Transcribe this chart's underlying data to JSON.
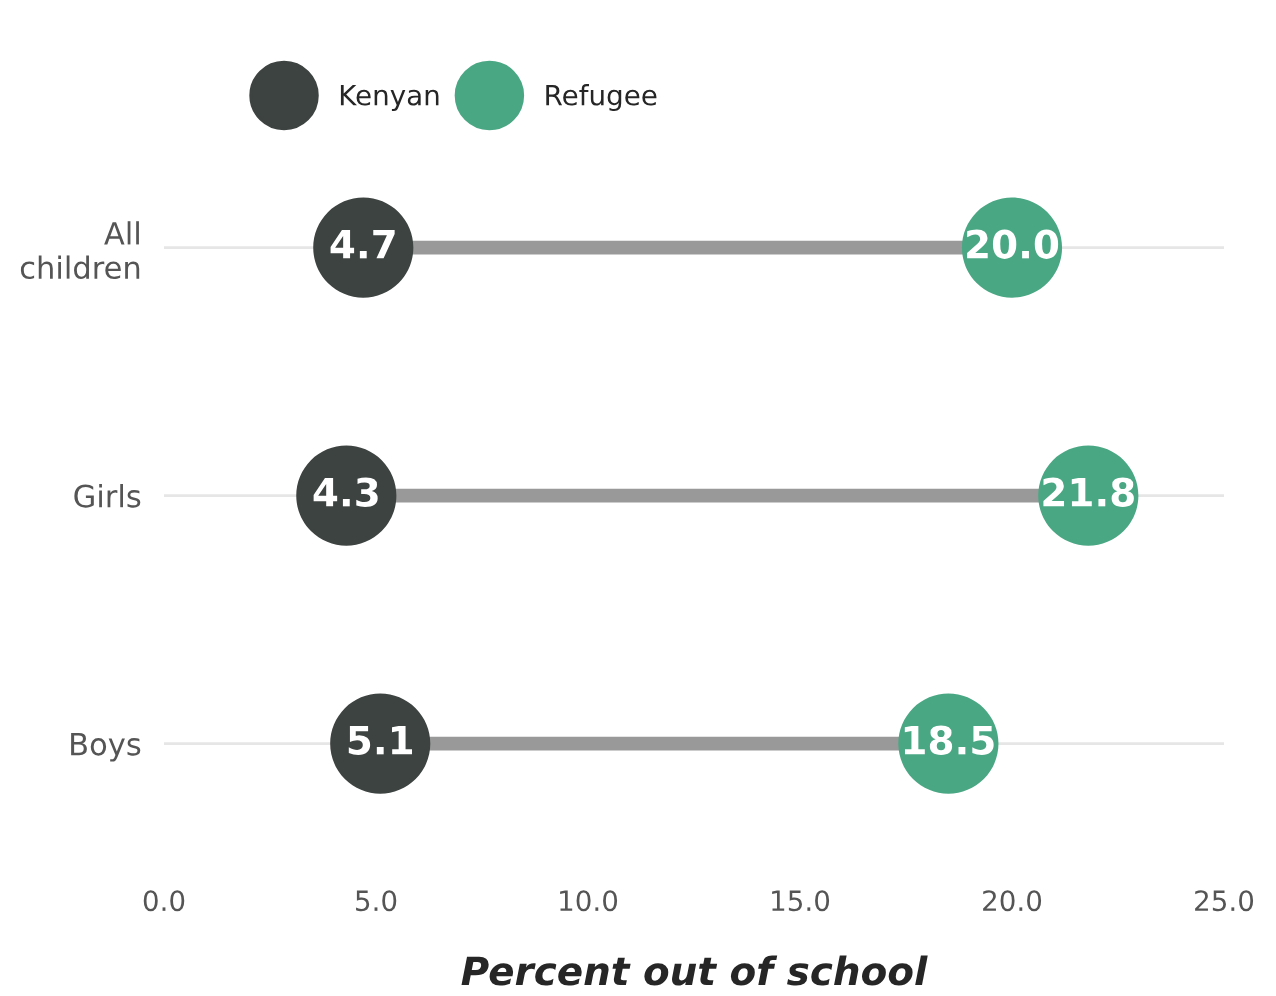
{
  "chart_data": {
    "type": "scatter",
    "xlabel": "Percent out of school",
    "categories": [
      "All\nchildren",
      "Girls",
      "Boys"
    ],
    "orientation": "horizontal",
    "series": [
      {
        "name": "Kenyan",
        "color": "#3d4341",
        "values": [
          4.7,
          4.3,
          5.1
        ],
        "value_labels": [
          "4.7",
          "4.3",
          "5.1"
        ]
      },
      {
        "name": "Refugee",
        "color": "#4aa784",
        "values": [
          20.0,
          21.8,
          18.5
        ],
        "value_labels": [
          "20.0",
          "21.8",
          "18.5"
        ]
      }
    ],
    "xlim": [
      0,
      25
    ],
    "xticks": [
      {
        "value": 0,
        "label": "0.0"
      },
      {
        "value": 5,
        "label": "5.0"
      },
      {
        "value": 10,
        "label": "10.0"
      },
      {
        "value": 15,
        "label": "15.0"
      },
      {
        "value": 20,
        "label": "20.0"
      },
      {
        "value": 25,
        "label": "25.0"
      }
    ],
    "grid": "y",
    "legend": "top",
    "marker": "circle"
  }
}
